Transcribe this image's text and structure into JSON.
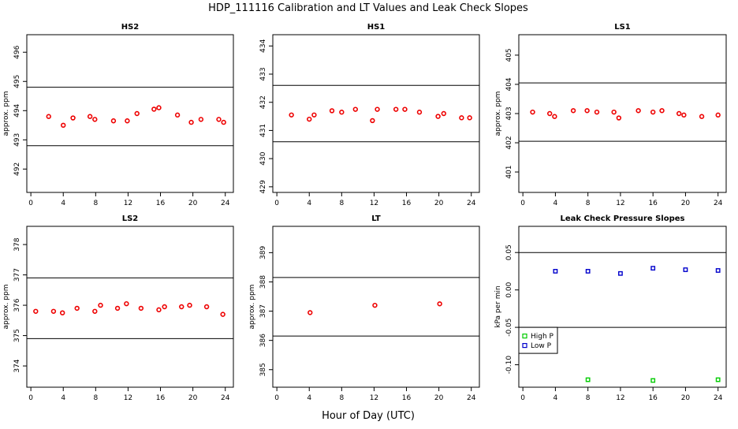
{
  "title": "HDP_111116  Calibration and LT Values and Leak Check Slopes",
  "xlabel": "Hour of Day (UTC)",
  "colors": {
    "cal_points": "#ee0000",
    "high_p": "#00cc00",
    "low_p": "#0000cc"
  },
  "chart_data": [
    {
      "type": "scatter",
      "title": "HS2",
      "ylabel": "approx. ppm",
      "xlim": [
        -0.5,
        25
      ],
      "ylim": [
        491.2,
        496.6
      ],
      "xticks": [
        0,
        4,
        8,
        12,
        16,
        20,
        24
      ],
      "yticks": [
        492,
        493,
        494,
        495,
        496
      ],
      "hlines": [
        494.8,
        492.8
      ],
      "points": [
        {
          "x": 2.2,
          "y": 493.8
        },
        {
          "x": 4,
          "y": 493.5
        },
        {
          "x": 5.2,
          "y": 493.75
        },
        {
          "x": 7.3,
          "y": 493.8
        },
        {
          "x": 7.9,
          "y": 493.7
        },
        {
          "x": 10.2,
          "y": 493.65
        },
        {
          "x": 11.9,
          "y": 493.65
        },
        {
          "x": 13.1,
          "y": 493.9
        },
        {
          "x": 15.2,
          "y": 494.05
        },
        {
          "x": 15.8,
          "y": 494.1
        },
        {
          "x": 18.1,
          "y": 493.85
        },
        {
          "x": 19.8,
          "y": 493.6
        },
        {
          "x": 21,
          "y": 493.7
        },
        {
          "x": 23.2,
          "y": 493.7
        },
        {
          "x": 23.8,
          "y": 493.6
        }
      ]
    },
    {
      "type": "scatter",
      "title": "HS1",
      "ylabel": "",
      "xlim": [
        -0.5,
        25
      ],
      "ylim": [
        428.8,
        434.4
      ],
      "xticks": [
        0,
        4,
        8,
        12,
        16,
        20,
        24
      ],
      "yticks": [
        429,
        430,
        431,
        432,
        433,
        434
      ],
      "hlines": [
        432.6,
        430.6
      ],
      "points": [
        {
          "x": 1.8,
          "y": 431.55
        },
        {
          "x": 4,
          "y": 431.4
        },
        {
          "x": 4.6,
          "y": 431.55
        },
        {
          "x": 6.8,
          "y": 431.7
        },
        {
          "x": 8,
          "y": 431.65
        },
        {
          "x": 9.7,
          "y": 431.75
        },
        {
          "x": 11.8,
          "y": 431.35
        },
        {
          "x": 12.4,
          "y": 431.75
        },
        {
          "x": 14.7,
          "y": 431.75
        },
        {
          "x": 15.8,
          "y": 431.75
        },
        {
          "x": 17.6,
          "y": 431.65
        },
        {
          "x": 19.9,
          "y": 431.5
        },
        {
          "x": 20.6,
          "y": 431.6
        },
        {
          "x": 22.8,
          "y": 431.45
        },
        {
          "x": 23.8,
          "y": 431.45
        }
      ]
    },
    {
      "type": "scatter",
      "title": "LS1",
      "ylabel": "approx. ppm",
      "xlim": [
        -0.5,
        25
      ],
      "ylim": [
        400.3,
        405.7
      ],
      "xticks": [
        0,
        4,
        8,
        12,
        16,
        20,
        24
      ],
      "yticks": [
        401,
        402,
        403,
        404,
        405
      ],
      "hlines": [
        404.05,
        402.05
      ],
      "points": [
        {
          "x": 1.2,
          "y": 403.05
        },
        {
          "x": 3.3,
          "y": 403.0
        },
        {
          "x": 3.9,
          "y": 402.9
        },
        {
          "x": 6.2,
          "y": 403.1
        },
        {
          "x": 7.9,
          "y": 403.1
        },
        {
          "x": 9.1,
          "y": 403.05
        },
        {
          "x": 11.2,
          "y": 403.05
        },
        {
          "x": 11.8,
          "y": 402.85
        },
        {
          "x": 14.2,
          "y": 403.1
        },
        {
          "x": 16,
          "y": 403.05
        },
        {
          "x": 17.1,
          "y": 403.1
        },
        {
          "x": 19.2,
          "y": 403.0
        },
        {
          "x": 19.8,
          "y": 402.95
        },
        {
          "x": 22,
          "y": 402.9
        },
        {
          "x": 24,
          "y": 402.95
        }
      ]
    },
    {
      "type": "scatter",
      "title": "LS2",
      "ylabel": "approx. ppm",
      "xlim": [
        -0.5,
        25
      ],
      "ylim": [
        373.3,
        378.6
      ],
      "xticks": [
        0,
        4,
        8,
        12,
        16,
        20,
        24
      ],
      "yticks": [
        374,
        375,
        376,
        377,
        378
      ],
      "hlines": [
        376.9,
        374.9
      ],
      "points": [
        {
          "x": 0.6,
          "y": 375.8
        },
        {
          "x": 2.8,
          "y": 375.8
        },
        {
          "x": 3.9,
          "y": 375.75
        },
        {
          "x": 5.7,
          "y": 375.9
        },
        {
          "x": 7.9,
          "y": 375.8
        },
        {
          "x": 8.6,
          "y": 376.0
        },
        {
          "x": 10.7,
          "y": 375.9
        },
        {
          "x": 11.8,
          "y": 376.05
        },
        {
          "x": 13.6,
          "y": 375.9
        },
        {
          "x": 15.8,
          "y": 375.85
        },
        {
          "x": 16.5,
          "y": 375.95
        },
        {
          "x": 18.6,
          "y": 375.95
        },
        {
          "x": 19.6,
          "y": 376.0
        },
        {
          "x": 21.7,
          "y": 375.95
        },
        {
          "x": 23.7,
          "y": 375.7
        }
      ]
    },
    {
      "type": "scatter",
      "title": "LT",
      "ylabel": "approx. ppm",
      "xlim": [
        -0.5,
        25
      ],
      "ylim": [
        384.4,
        389.9
      ],
      "xticks": [
        0,
        4,
        8,
        12,
        16,
        20,
        24
      ],
      "yticks": [
        385,
        386,
        387,
        388,
        389
      ],
      "hlines": [
        388.15,
        386.15
      ],
      "points": [
        {
          "x": 4.1,
          "y": 386.95
        },
        {
          "x": 12.1,
          "y": 387.2
        },
        {
          "x": 20.1,
          "y": 387.25
        }
      ]
    },
    {
      "type": "scatter",
      "title": "Leak Check Pressure Slopes",
      "ylabel": "kPa per min",
      "xlim": [
        -0.5,
        25
      ],
      "ylim": [
        -0.13,
        0.085
      ],
      "xticks": [
        0,
        4,
        8,
        12,
        16,
        20,
        24
      ],
      "yticks": [
        -0.1,
        -0.05,
        0.0,
        0.05
      ],
      "ytick_labels": [
        "-0.10",
        "-0.05",
        "0.00",
        "0.05"
      ],
      "hlines": [
        0.05,
        -0.05
      ],
      "legend": "bottom-left",
      "series": [
        {
          "name": "High P",
          "points": [
            {
              "x": 8,
              "y": -0.12
            },
            {
              "x": 16,
              "y": -0.121
            },
            {
              "x": 24,
              "y": -0.12
            }
          ]
        },
        {
          "name": "Low P",
          "points": [
            {
              "x": 4,
              "y": 0.025
            },
            {
              "x": 8,
              "y": 0.025
            },
            {
              "x": 12,
              "y": 0.022
            },
            {
              "x": 16,
              "y": 0.029
            },
            {
              "x": 20,
              "y": 0.027
            },
            {
              "x": 24,
              "y": 0.026
            }
          ]
        }
      ]
    }
  ]
}
